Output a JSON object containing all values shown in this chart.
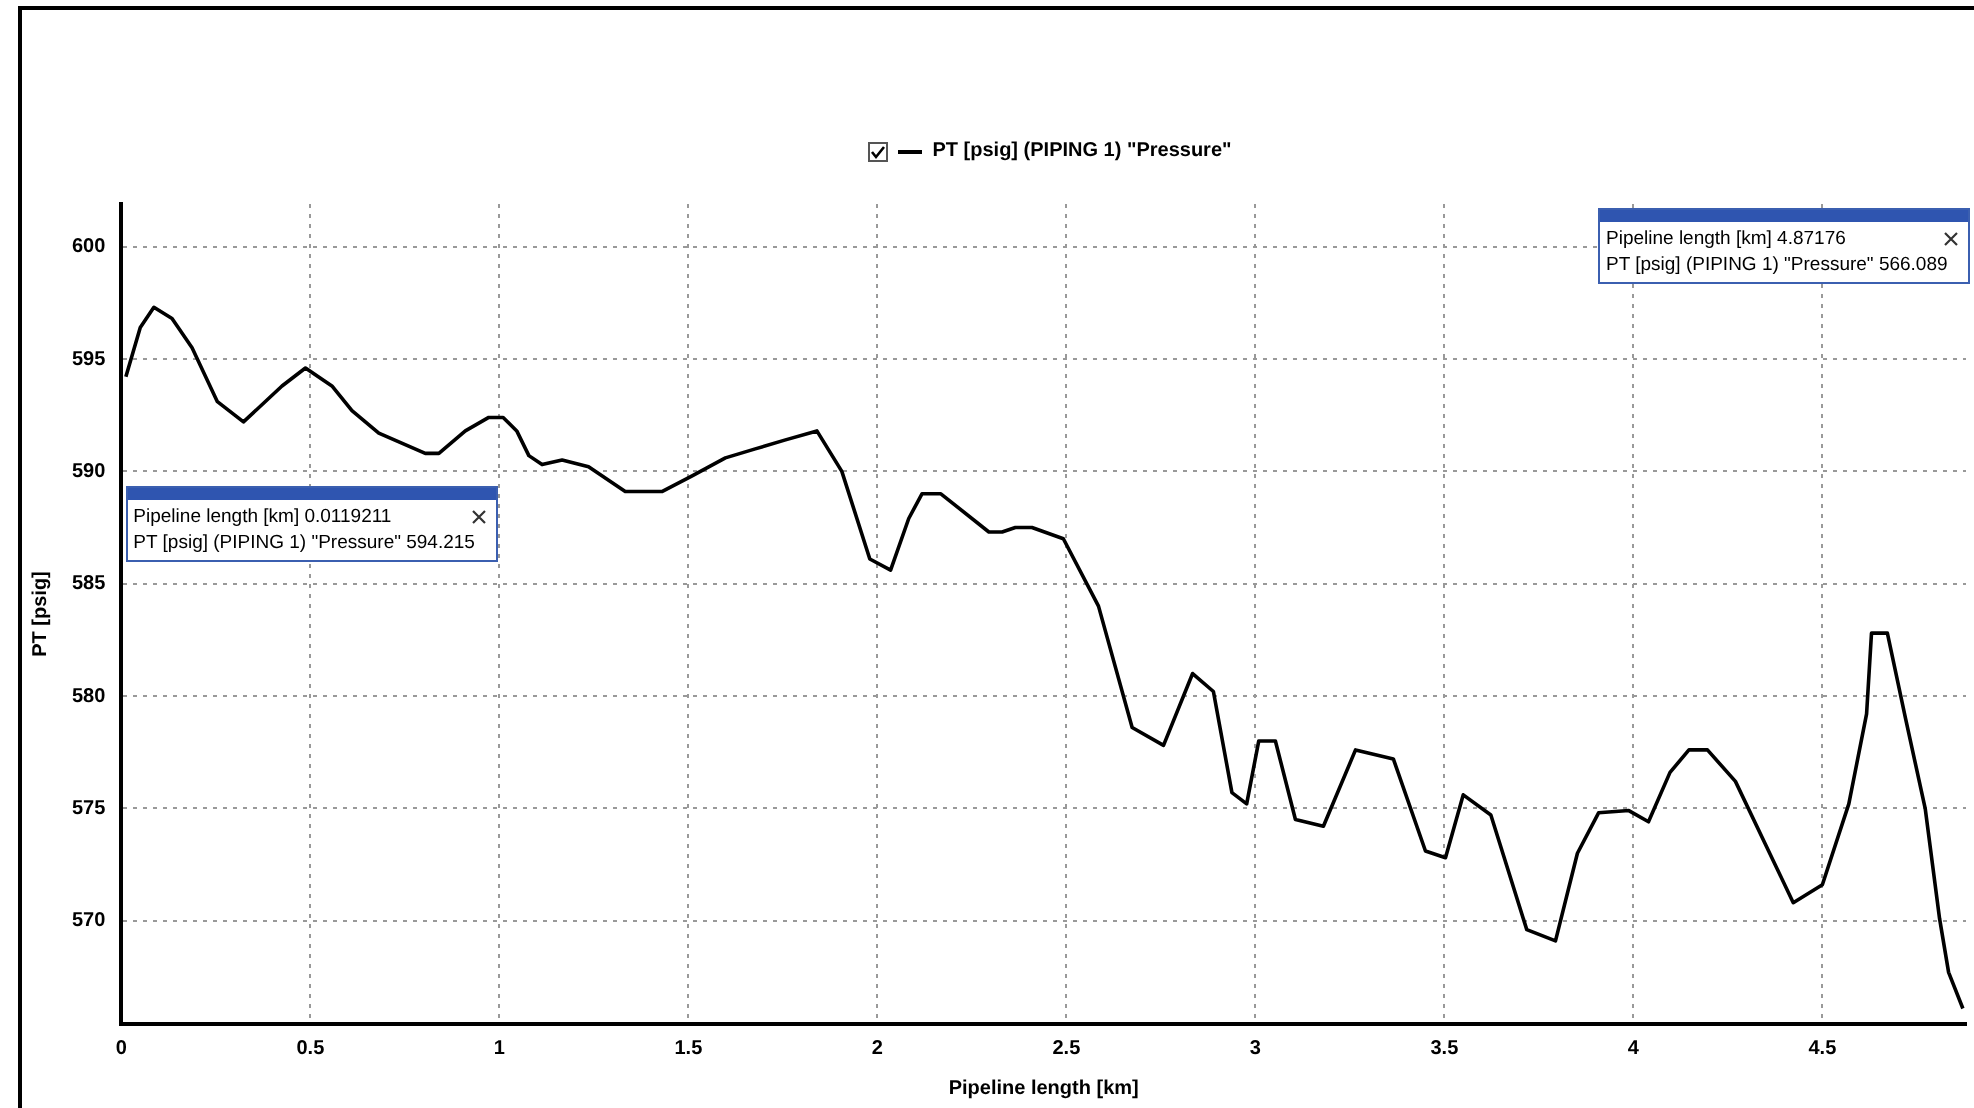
{
  "chart_data": {
    "type": "line",
    "xlabel": "Pipeline length [km]",
    "ylabel": "PT [psig]",
    "xlim": [
      0,
      4.88
    ],
    "ylim": [
      565.4,
      601.9
    ],
    "xticks": [
      0,
      0.5,
      1,
      1.5,
      2,
      2.5,
      3,
      3.5,
      4,
      4.5
    ],
    "yticks": [
      570,
      575,
      580,
      585,
      590,
      595,
      600
    ],
    "grid": true,
    "legend": "top",
    "marker": "none",
    "line_style": "solid",
    "series": [
      {
        "name": "PT [psig] (PIPING 1) \"Pressure\"",
        "color": "#000000",
        "x": [
          0.0119211,
          0.05,
          0.086,
          0.134,
          0.187,
          0.254,
          0.323,
          0.425,
          0.487,
          0.557,
          0.61,
          0.681,
          0.804,
          0.84,
          0.91,
          0.972,
          1.01,
          1.046,
          1.078,
          1.113,
          1.166,
          1.236,
          1.333,
          1.43,
          1.51,
          1.598,
          1.677,
          1.757,
          1.84,
          1.906,
          1.98,
          2.035,
          2.083,
          2.118,
          2.168,
          2.295,
          2.33,
          2.365,
          2.409,
          2.492,
          2.585,
          2.674,
          2.757,
          2.834,
          2.889,
          2.938,
          2.977,
          3.009,
          3.053,
          3.106,
          3.18,
          3.265,
          3.365,
          3.45,
          3.503,
          3.55,
          3.623,
          3.718,
          3.794,
          3.852,
          3.908,
          3.988,
          4.04,
          4.097,
          4.147,
          4.196,
          4.27,
          4.423,
          4.5,
          4.57,
          4.617,
          4.63,
          4.672,
          4.72,
          4.772,
          4.81,
          4.834,
          4.87176
        ],
        "values": [
          594.215,
          596.4,
          597.3,
          596.8,
          595.5,
          593.1,
          592.2,
          593.8,
          594.6,
          593.8,
          592.7,
          591.7,
          590.8,
          590.8,
          591.8,
          592.4,
          592.4,
          591.8,
          590.7,
          590.3,
          590.5,
          590.2,
          589.1,
          589.1,
          589.8,
          590.6,
          591.0,
          591.4,
          591.8,
          590.0,
          586.1,
          585.6,
          587.9,
          589.0,
          589.0,
          587.3,
          587.3,
          587.5,
          587.5,
          587.0,
          584.0,
          578.6,
          577.8,
          581.0,
          580.2,
          575.7,
          575.2,
          578.0,
          578.0,
          574.5,
          574.2,
          577.6,
          577.2,
          573.1,
          572.8,
          575.6,
          574.7,
          569.6,
          569.1,
          573.0,
          574.8,
          574.9,
          574.4,
          576.6,
          577.6,
          577.6,
          576.2,
          570.8,
          571.6,
          575.2,
          579.2,
          582.8,
          582.8,
          579.0,
          575.0,
          570.1,
          567.7,
          566.089
        ]
      }
    ],
    "annotations": [
      "Pipeline length [km] 0.0119211\nPT [psig] (PIPING 1) \"Pressure\" 594.215",
      "Pipeline length [km] 4.87176\nPT [psig] (PIPING 1) \"Pressure\" 566.089"
    ]
  }
}
